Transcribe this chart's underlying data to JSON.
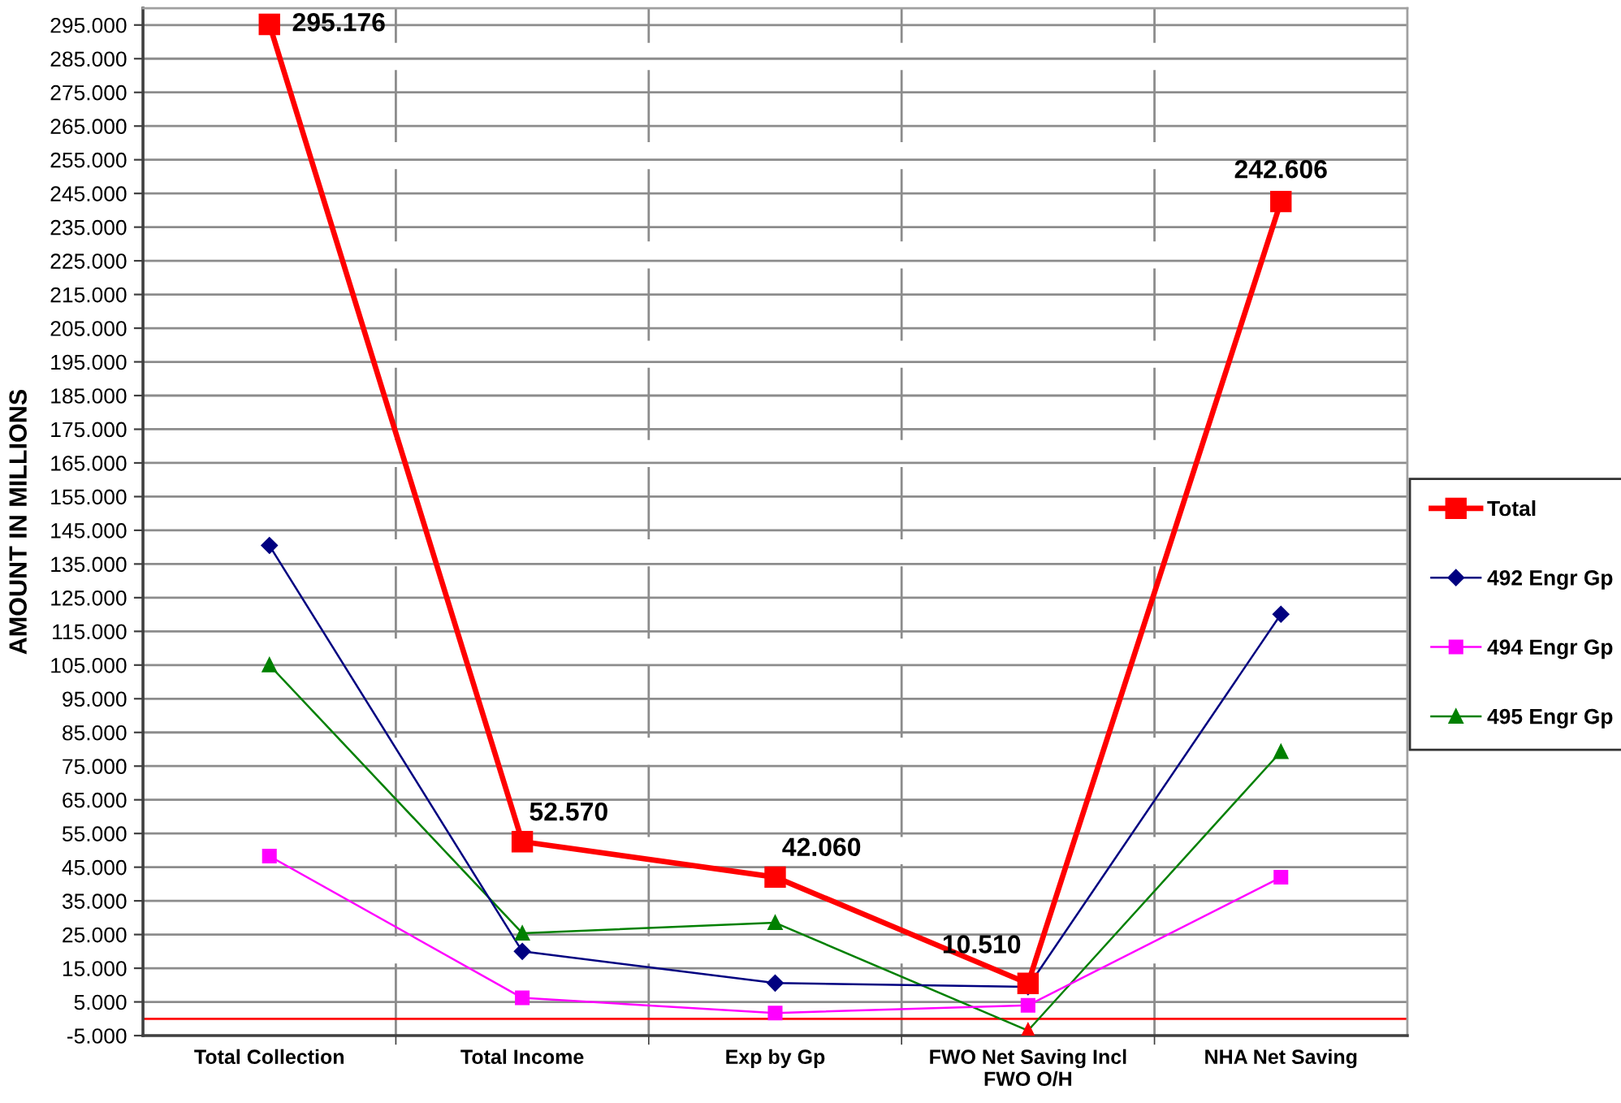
{
  "chart_data": {
    "type": "line",
    "ylabel": "AMOUNT IN MILLIONS",
    "categories": [
      "Total Collection",
      "Total Income",
      "Exp by Gp",
      "FWO Net Saving Incl\nFWO O/H",
      "NHA Net Saving"
    ],
    "series": [
      {
        "name": "Total",
        "color": "#ff0000",
        "marker": "square",
        "values": [
          295.176,
          52.57,
          42.06,
          10.51,
          242.606
        ],
        "value_labels": [
          "295.176",
          "52.570",
          "42.060",
          "10.510",
          "242.606"
        ]
      },
      {
        "name": "492 Engr Gp",
        "color": "#000080",
        "marker": "diamond",
        "values": [
          140.5,
          20.0,
          10.6,
          9.5,
          120.1
        ]
      },
      {
        "name": "494 Engr Gp",
        "color": "#ff00ff",
        "marker": "square",
        "values": [
          48.3,
          6.2,
          1.7,
          4.0,
          42.0
        ]
      },
      {
        "name": "495 Engr Gp",
        "color": "#008000",
        "marker": "triangle",
        "values": [
          105.0,
          25.4,
          28.5,
          -3.5,
          79.3
        ],
        "colors": [
          "#008000",
          "#008000",
          "#008000",
          "#ff0000",
          "#008000"
        ]
      }
    ],
    "ylim": [
      -5,
      300
    ],
    "yticks": [
      {
        "value": -5,
        "label": "-5.000"
      },
      {
        "value": 5,
        "label": "5.000"
      },
      {
        "value": 15,
        "label": "15.000"
      },
      {
        "value": 25,
        "label": "25.000"
      },
      {
        "value": 35,
        "label": "35.000"
      },
      {
        "value": 45,
        "label": "45.000"
      },
      {
        "value": 55,
        "label": "55.000"
      },
      {
        "value": 65,
        "label": "65.000"
      },
      {
        "value": 75,
        "label": "75.000"
      },
      {
        "value": 85,
        "label": "85.000"
      },
      {
        "value": 95,
        "label": "95.000"
      },
      {
        "value": 105,
        "label": "105.000"
      },
      {
        "value": 115,
        "label": "115.000"
      },
      {
        "value": 125,
        "label": "125.000"
      },
      {
        "value": 135,
        "label": "135.000"
      },
      {
        "value": 145,
        "label": "145.000"
      },
      {
        "value": 155,
        "label": "155.000"
      },
      {
        "value": 165,
        "label": "165.000"
      },
      {
        "value": 175,
        "label": "175.000"
      },
      {
        "value": 185,
        "label": "185.000"
      },
      {
        "value": 195,
        "label": "195.000"
      },
      {
        "value": 205,
        "label": "205.000"
      },
      {
        "value": 215,
        "label": "215.000"
      },
      {
        "value": 225,
        "label": "225.000"
      },
      {
        "value": 235,
        "label": "235.000"
      },
      {
        "value": 245,
        "label": "245.000"
      },
      {
        "value": 255,
        "label": "255.000"
      },
      {
        "value": 265,
        "label": "265.000"
      },
      {
        "value": 275,
        "label": "275.000"
      },
      {
        "value": 285,
        "label": "285.000"
      },
      {
        "value": 295,
        "label": "295.000"
      }
    ],
    "grid": true,
    "legend": "right",
    "ref_lines": [
      {
        "axis": "y",
        "value": 0,
        "color": "#ff0000"
      }
    ]
  }
}
